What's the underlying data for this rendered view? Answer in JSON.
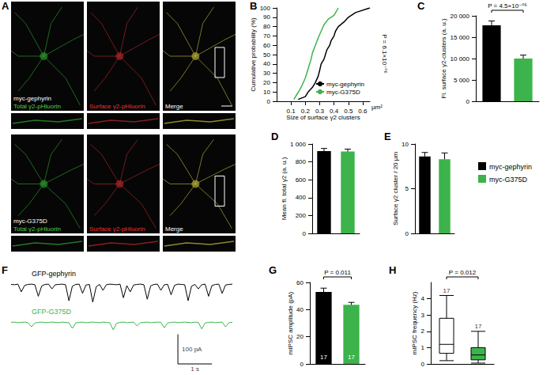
{
  "chart_data": [
    {
      "label": "A",
      "type": "image",
      "rows": [
        {
          "name": "myc-gephyrin",
          "channels": [
            "Total γ2-pHluorin",
            "Surface γ2-pHluorin",
            "Merge"
          ]
        },
        {
          "name": "myc-G375D",
          "channels": [
            "Total γ2-pHluorin",
            "Surface γ2-pHluorin",
            "Merge"
          ]
        }
      ],
      "colors": [
        "#46d246",
        "#e8322b",
        "#ffffff"
      ]
    },
    {
      "label": "B",
      "type": "line",
      "xlabel": "Size of surface γ2 clusters",
      "x_unit": "µm²",
      "ylabel": "Cumulative probability (%)",
      "xlim": [
        0,
        0.65
      ],
      "xticks": [
        0.1,
        0.2,
        0.3,
        0.4,
        0.5,
        0.6
      ],
      "ylim": [
        0,
        100
      ],
      "yticks": [
        0,
        10,
        20,
        30,
        40,
        50,
        60,
        70,
        80,
        90,
        100
      ],
      "legend": "bottom-right",
      "annotations": [
        "P = 6.1×10⁻⁰⁶"
      ],
      "series": [
        {
          "name": "myc-gephyrin",
          "color": "#000000",
          "x": [
            0.15,
            0.2,
            0.22,
            0.25,
            0.27,
            0.29,
            0.3,
            0.31,
            0.33,
            0.34,
            0.35,
            0.37,
            0.38,
            0.4,
            0.41,
            0.43,
            0.47,
            0.5,
            0.55,
            0.65
          ],
          "values": [
            2,
            5,
            10,
            15,
            20,
            27,
            33,
            40,
            45,
            50,
            55,
            60,
            65,
            70,
            75,
            80,
            85,
            90,
            95,
            100
          ]
        },
        {
          "name": "myc-G375D",
          "color": "#3cb44b",
          "x": [
            0.12,
            0.14,
            0.16,
            0.18,
            0.2,
            0.22,
            0.24,
            0.25,
            0.27,
            0.29,
            0.31,
            0.33,
            0.36,
            0.4,
            0.43
          ],
          "values": [
            2,
            7,
            12,
            18,
            25,
            35,
            45,
            52,
            60,
            68,
            75,
            82,
            88,
            92,
            100
          ]
        }
      ]
    },
    {
      "label": "C",
      "type": "bar",
      "ylabel": "Fl. surface γ2-clusters (a. u.)",
      "categories": [
        null,
        null
      ],
      "values": [
        17800,
        10000
      ],
      "errors": [
        1000,
        800
      ],
      "colors": [
        "#000000",
        "#3cb44b"
      ],
      "ylim": [
        0,
        20000
      ],
      "yticks": [
        0,
        {
          "value": 5000,
          "label": "5 000"
        },
        {
          "value": 10000,
          "label": "10 000"
        },
        {
          "value": 15000,
          "label": "15 000"
        },
        {
          "value": 20000,
          "label": "20 000"
        }
      ],
      "tick_labels": "y",
      "annotations": [
        "P = 4.5×10⁻⁰⁶"
      ]
    },
    {
      "label": "D",
      "type": "bar",
      "ylabel": "Mean fl. total γ2 (a. u.)",
      "categories": [
        null,
        null
      ],
      "values": [
        920,
        915
      ],
      "errors": [
        30,
        28
      ],
      "colors": [
        "#000000",
        "#3cb44b"
      ],
      "ylim": [
        0,
        1000
      ],
      "yticks": [
        0,
        200,
        400,
        600,
        800,
        {
          "value": 1000,
          "label": "1 000"
        }
      ],
      "tick_labels": "y"
    },
    {
      "label": "E",
      "type": "bar",
      "ylabel": "Surface γ2 cluster / 20 µm",
      "categories": [
        null,
        null
      ],
      "values": [
        8.6,
        8.3
      ],
      "errors": [
        0.45,
        0.7
      ],
      "colors": [
        "#000000",
        "#3cb44b"
      ],
      "ylim": [
        0,
        10
      ],
      "yticks": [
        0,
        5,
        10
      ],
      "tick_labels": "y"
    },
    {
      "type": "legend",
      "legend": "right",
      "series": [
        {
          "name": "myc-gephyrin",
          "color": "#000000"
        },
        {
          "name": "myc-G375D",
          "color": "#3cb44b"
        }
      ]
    },
    {
      "label": "F",
      "type": "trace",
      "x": [
        0,
        0.1,
        0.2,
        0.3,
        0.4,
        0.5,
        0.6,
        0.7,
        0.8,
        0.9,
        1,
        1.1,
        1.2,
        1.3,
        1.4,
        1.5,
        1.6,
        1.7,
        1.8,
        1.9,
        2,
        2.1,
        2.2,
        2.3,
        2.4,
        2.5,
        2.6,
        2.7,
        2.8,
        2.9,
        3,
        3.1,
        3.2,
        3.3,
        3.4,
        3.5,
        3.6,
        3.7,
        3.8,
        3.9,
        4,
        4.1,
        4.2,
        4.3,
        4.4,
        4.5,
        4.6,
        4.7,
        4.8,
        4.9,
        5,
        5.1,
        5.2,
        5.3,
        5.4,
        5.5,
        5.6,
        5.7,
        5.8,
        5.9,
        6,
        6.1,
        6.2,
        6.3,
        6.4,
        6.5
      ],
      "xlim": [
        0,
        6.5
      ],
      "ylim": [
        -100,
        20
      ],
      "tick_labels": false,
      "series": [
        {
          "name": "GFP-gephyrin",
          "color": "#000000",
          "values": [
            0,
            -1,
            1,
            -25,
            -3,
            0,
            1,
            -1,
            -40,
            -5,
            0,
            1,
            -15,
            -1,
            0,
            1,
            -1,
            -55,
            -6,
            0,
            1,
            -30,
            -2,
            0,
            -60,
            -8,
            0,
            -20,
            -1,
            1,
            0,
            -1,
            1,
            -45,
            -4,
            -25,
            -2,
            0,
            1,
            -1,
            -50,
            -5,
            0,
            1,
            -20,
            -1,
            0,
            -35,
            -3,
            1,
            0,
            -1,
            -55,
            -6,
            0,
            -15,
            -1,
            1,
            -40,
            -4,
            0,
            1,
            -30,
            -2,
            0,
            1
          ]
        },
        {
          "name": "GFP-G375D",
          "color": "#3cb44b",
          "values": [
            0,
            1,
            -1,
            0,
            1,
            -1,
            -15,
            -2,
            0,
            1,
            -1,
            0,
            1,
            0,
            -1,
            1,
            0,
            -1,
            -20,
            -2,
            0,
            1,
            -1,
            0,
            1,
            0,
            -1,
            1,
            0,
            -1,
            -25,
            -3,
            0,
            1,
            -1,
            0,
            1,
            -12,
            -1,
            0,
            1,
            -1,
            0,
            1,
            0,
            -18,
            -2,
            0,
            1,
            -1,
            0,
            1,
            0,
            -1,
            1,
            0,
            -22,
            -2,
            0,
            1,
            -1,
            0,
            1,
            -15,
            -1,
            0
          ]
        }
      ],
      "scale_bar": {
        "x": 1,
        "x_label": "1 s",
        "y": 100,
        "y_label": "100 pA"
      }
    },
    {
      "label": "G",
      "type": "bar",
      "ylabel": "mIPSC amplitude (pA)",
      "categories": [
        null,
        null
      ],
      "values": [
        53,
        43.5
      ],
      "errors": [
        2.8,
        1.8
      ],
      "n": [
        17,
        17
      ],
      "colors": [
        "#000000",
        "#3cb44b"
      ],
      "ylim": [
        0,
        60
      ],
      "yticks": [
        0,
        20,
        40,
        60
      ],
      "tick_labels": "y",
      "annotations": [
        "P = 0.011"
      ]
    },
    {
      "label": "H",
      "type": "boxplot",
      "ylabel": "mIPSC frequency (Hz)",
      "categories": [
        null,
        null
      ],
      "stats": [
        [
          0.2,
          0.65,
          1.2,
          2.8,
          4.2
        ],
        [
          0.05,
          0.25,
          0.55,
          1.0,
          2.0
        ]
      ],
      "n": [
        17,
        17
      ],
      "colors": [
        "#000000",
        "#3cb44b"
      ],
      "ylim": [
        0,
        5
      ],
      "yticks": [
        0,
        1,
        2,
        3,
        4
      ],
      "tick_labels": "y",
      "annotations": [
        "P = 0.012"
      ]
    }
  ]
}
